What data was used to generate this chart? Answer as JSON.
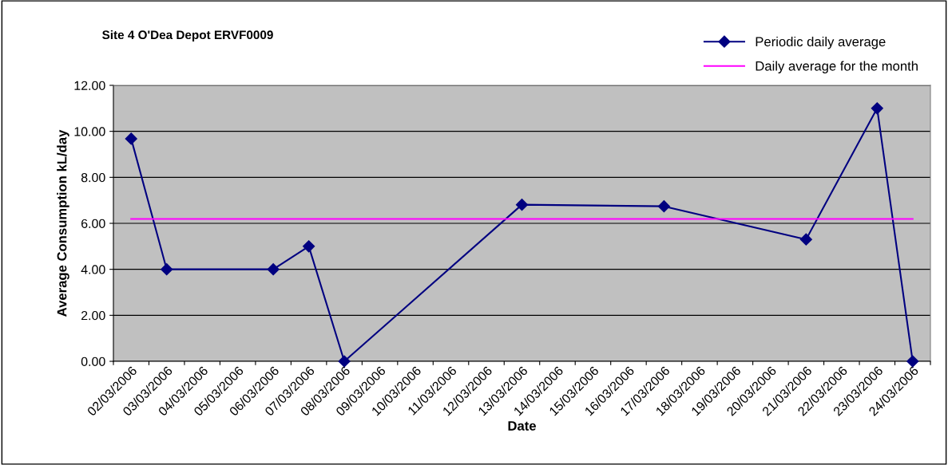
{
  "chart_data": {
    "type": "line",
    "title": "Site 4 O'Dea Depot ERVF0009",
    "xlabel": "Date",
    "ylabel": "Average Consumption kL/day",
    "categories": [
      "02/03/2006",
      "03/03/2006",
      "04/03/2006",
      "05/03/2006",
      "06/03/2006",
      "07/03/2006",
      "08/03/2006",
      "09/03/2006",
      "10/03/2006",
      "11/03/2006",
      "12/03/2006",
      "13/03/2006",
      "14/03/2006",
      "15/03/2006",
      "16/03/2006",
      "17/03/2006",
      "18/03/2006",
      "19/03/2006",
      "20/03/2006",
      "21/03/2006",
      "22/03/2006",
      "23/03/2006",
      "24/03/2006"
    ],
    "series": [
      {
        "name": "Periodic daily average",
        "color": "#000080",
        "marker": "diamond",
        "values": [
          9.68,
          4.0,
          null,
          null,
          4.0,
          5.0,
          0.0,
          null,
          null,
          null,
          null,
          6.81,
          null,
          null,
          null,
          6.74,
          null,
          null,
          null,
          5.3,
          null,
          11.0,
          0.0
        ]
      },
      {
        "name": "Daily average for the month",
        "color": "#ff00ff",
        "marker": "none",
        "values": [
          6.19,
          6.19,
          6.19,
          6.19,
          6.19,
          6.19,
          6.19,
          6.19,
          6.19,
          6.19,
          6.19,
          6.19,
          6.19,
          6.19,
          6.19,
          6.19,
          6.19,
          6.19,
          6.19,
          6.19,
          6.19,
          6.19,
          6.19
        ]
      }
    ],
    "ylim": [
      0,
      12
    ],
    "yticks": [
      {
        "value": 0,
        "label": "0.00"
      },
      {
        "value": 2,
        "label": "2.00"
      },
      {
        "value": 4,
        "label": "4.00"
      },
      {
        "value": 6,
        "label": "6.00"
      },
      {
        "value": 8,
        "label": "8.00"
      },
      {
        "value": 10,
        "label": "10.00"
      },
      {
        "value": 12,
        "label": "12.00"
      }
    ],
    "grid": "y",
    "legend": "top right"
  }
}
